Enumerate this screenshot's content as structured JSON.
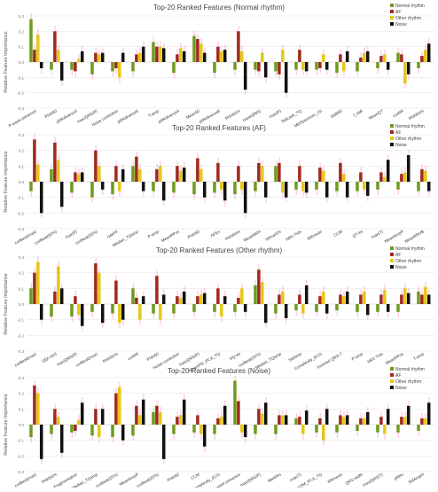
{
  "legend_labels": [
    "Normal rhythm",
    "AF",
    "Other rhythm",
    "Noise"
  ],
  "colors": {
    "Normal rhythm": "#6f9a1f",
    "AF": "#a0291c",
    "Other rhythm": "#e6c619",
    "Noise": "#111111",
    "errorbar": "#ff7fb0",
    "grid": "#e6e6e6"
  },
  "chart_data": [
    {
      "type": "bar",
      "title": "Top-20 Ranked Features (Normal rhythm)",
      "ylabel": "Relative Feature Importance",
      "ylim": [
        -0.3,
        0.3
      ],
      "legend": "top-right",
      "categories": [
        "P-wave presence",
        "PNN50",
        "pRRdiverse3",
        "max(QRS/P)",
        "Noise correction",
        "pRRdiverse5",
        "T-amp",
        "pRRdiverse4",
        "Mean50",
        "pRRdiverse6",
        "PNN50%",
        "mean(RRI)",
        "max(P)",
        "StdLask_TQ",
        "MinSpectrum_ISI",
        "StdRRI",
        "f_nMI",
        "MeanQT",
        "corRR",
        "PNN50%"
      ],
      "series": [
        {
          "name": "Normal rhythm",
          "values": [
            0.28,
            -0.05,
            -0.05,
            -0.08,
            -0.06,
            -0.06,
            0.13,
            -0.07,
            0.17,
            -0.07,
            -0.05,
            -0.05,
            -0.06,
            -0.05,
            -0.05,
            -0.07,
            -0.06,
            -0.04,
            0.06,
            -0.04
          ]
        },
        {
          "name": "AF",
          "values": [
            0.08,
            0.2,
            -0.06,
            0.06,
            -0.04,
            0.05,
            0.1,
            0.05,
            0.15,
            0.1,
            0.2,
            -0.06,
            -0.08,
            0.08,
            -0.04,
            0.05,
            0.03,
            0.04,
            0.05,
            0.04
          ]
        },
        {
          "name": "Other rhythm",
          "values": [
            0.18,
            0.08,
            0.02,
            0.05,
            -0.1,
            0.06,
            0.1,
            0.09,
            0.12,
            0.07,
            0.07,
            0.06,
            0.08,
            -0.05,
            0.05,
            -0.06,
            0.06,
            0.05,
            -0.14,
            0.08
          ]
        },
        {
          "name": "Noise",
          "values": [
            -0.04,
            -0.12,
            0.07,
            0.06,
            0.06,
            0.1,
            0.09,
            0.07,
            0.06,
            0.08,
            -0.18,
            -0.1,
            -0.2,
            -0.06,
            -0.05,
            0.07,
            0.07,
            -0.05,
            -0.08,
            0.12
          ]
        }
      ]
    },
    {
      "type": "bar",
      "title": "Top-20 Ranked Features (AF)",
      "ylabel": "Relative Feature Importance",
      "ylim": [
        -0.3,
        0.3
      ],
      "legend": "top-right",
      "categories": [
        "corBeat(max)",
        "corBeat(50%)",
        "max(P)",
        "corBeat(25%)",
        "rateFF",
        "Median_TQamp",
        "P-amp",
        "MeanPPos",
        "PNN50",
        "AFEv",
        "PNN50%",
        "MeanRRN",
        "NNvar5%",
        "HRV Trdx",
        "RRmean",
        "CCM",
        "QT-int",
        "max(T)",
        "MeanAmpP",
        "MeanRRVB"
      ],
      "series": [
        {
          "name": "Normal rhythm",
          "values": [
            -0.06,
            0.08,
            -0.07,
            -0.1,
            -0.08,
            0.1,
            -0.06,
            -0.07,
            -0.08,
            -0.07,
            -0.08,
            -0.06,
            0.1,
            -0.05,
            -0.05,
            -0.06,
            -0.06,
            -0.05,
            -0.05,
            -0.06
          ]
        },
        {
          "name": "AF",
          "values": [
            0.27,
            0.25,
            0.06,
            0.2,
            0.1,
            0.16,
            0.08,
            0.1,
            0.15,
            0.12,
            0.1,
            0.12,
            0.12,
            0.1,
            0.09,
            0.12,
            0.06,
            0.06,
            0.05,
            0.08
          ]
        },
        {
          "name": "Other rhythm",
          "values": [
            0.11,
            0.14,
            0.05,
            0.1,
            -0.06,
            0.08,
            0.1,
            0.07,
            0.08,
            -0.05,
            -0.05,
            0.1,
            -0.07,
            -0.06,
            0.07,
            0.05,
            -0.05,
            0.03,
            0.06,
            0.07
          ]
        },
        {
          "name": "Noise",
          "values": [
            -0.2,
            -0.16,
            0.06,
            -0.05,
            0.08,
            -0.06,
            -0.12,
            0.09,
            -0.1,
            -0.12,
            -0.2,
            -0.1,
            -0.1,
            -0.07,
            -0.1,
            -0.1,
            -0.09,
            0.14,
            0.17,
            -0.06
          ]
        }
      ]
    },
    {
      "type": "bar",
      "title": "Top-20 Ranked Features (Other rhythm)",
      "ylabel": "Relative Feature Importance",
      "ylim": [
        -0.3,
        0.3
      ],
      "legend": "top-right",
      "categories": [
        "corBeat(max)",
        "SEF-ISI3",
        "max(QRS/P)",
        "corBeat(max)",
        "PNN50%",
        "corRR",
        "PNN50",
        "Noise correction",
        "max(QRS/P)",
        "MeanPSI_PCA_TQ",
        "PQ-int",
        "corBeat(25%)",
        "Median_TQamp",
        "StdAmp",
        "Complexity_ECG",
        "Inverted QRS-T",
        "P-amp",
        "HRV Trdx",
        "MeanPPos",
        "T-amp"
      ],
      "series": [
        {
          "name": "Normal rhythm",
          "values": [
            0.1,
            -0.08,
            -0.08,
            -0.05,
            -0.06,
            0.1,
            -0.06,
            -0.06,
            -0.05,
            -0.05,
            -0.05,
            0.12,
            -0.06,
            -0.04,
            -0.05,
            -0.04,
            -0.05,
            -0.05,
            -0.05,
            0.08
          ]
        },
        {
          "name": "AF",
          "values": [
            0.2,
            0.08,
            0.05,
            0.26,
            0.15,
            0.04,
            0.18,
            0.05,
            0.05,
            0.1,
            0.04,
            0.22,
            0.06,
            0.06,
            0.05,
            0.06,
            0.06,
            0.06,
            0.06,
            0.06
          ]
        },
        {
          "name": "Other rhythm",
          "values": [
            0.27,
            0.24,
            -0.07,
            0.2,
            -0.12,
            -0.1,
            -0.1,
            0.04,
            0.06,
            -0.08,
            0.1,
            0.14,
            0.08,
            -0.06,
            0.08,
            0.05,
            0.08,
            0.09,
            0.1,
            0.11
          ]
        },
        {
          "name": "Noise",
          "values": [
            -0.1,
            0.1,
            -0.14,
            -0.12,
            -0.1,
            0.05,
            0.06,
            0.08,
            0.07,
            0.05,
            -0.05,
            -0.12,
            -0.09,
            0.12,
            -0.06,
            0.08,
            -0.07,
            -0.05,
            0.07,
            0.06
          ]
        }
      ]
    },
    {
      "type": "bar",
      "title": "Top-20 Ranked Features (Noise)",
      "ylabel": "Relative Feature Importance",
      "ylim": [
        -0.3,
        0.3
      ],
      "legend": "top-right",
      "categories": [
        "corBeat(max)",
        "PNN50%",
        "Fragmentation",
        "Median_TQamp",
        "corBeat(25%)",
        "MeanAmpP",
        "corBeat(25%)",
        "PNN50",
        "CCM",
        "Complexity_ECG",
        "P-wave presence",
        "max(QRS/P)",
        "MinRRs",
        "max(T)",
        "MeanSM_PCA_TQ",
        "RRmean",
        "QRS width",
        "max(QRS/T)",
        "pRRx",
        "StdAmpN"
      ],
      "series": [
        {
          "name": "Normal rhythm",
          "values": [
            -0.08,
            -0.06,
            -0.05,
            -0.07,
            -0.08,
            -0.07,
            0.08,
            -0.06,
            -0.05,
            -0.06,
            0.28,
            -0.06,
            -0.06,
            0.04,
            -0.05,
            -0.05,
            -0.04,
            -0.05,
            -0.05,
            -0.04
          ]
        },
        {
          "name": "AF",
          "values": [
            0.25,
            0.1,
            -0.04,
            0.1,
            0.2,
            0.12,
            0.12,
            0.05,
            0.06,
            0.04,
            0.15,
            0.1,
            0.06,
            0.05,
            0.04,
            0.06,
            0.04,
            0.05,
            0.05,
            0.04
          ]
        },
        {
          "name": "Other rhythm",
          "values": [
            0.2,
            0.05,
            0.03,
            -0.08,
            0.24,
            0.06,
            0.08,
            0.06,
            -0.06,
            0.05,
            -0.05,
            0.07,
            0.06,
            -0.06,
            -0.1,
            0.05,
            0.04,
            -0.06,
            0.05,
            0.04
          ]
        },
        {
          "name": "Noise",
          "values": [
            -0.22,
            -0.18,
            0.14,
            0.1,
            -0.1,
            0.16,
            -0.22,
            0.16,
            -0.14,
            0.12,
            -0.08,
            0.14,
            0.06,
            0.09,
            0.1,
            0.06,
            0.08,
            0.1,
            0.12,
            0.14
          ]
        }
      ]
    }
  ]
}
